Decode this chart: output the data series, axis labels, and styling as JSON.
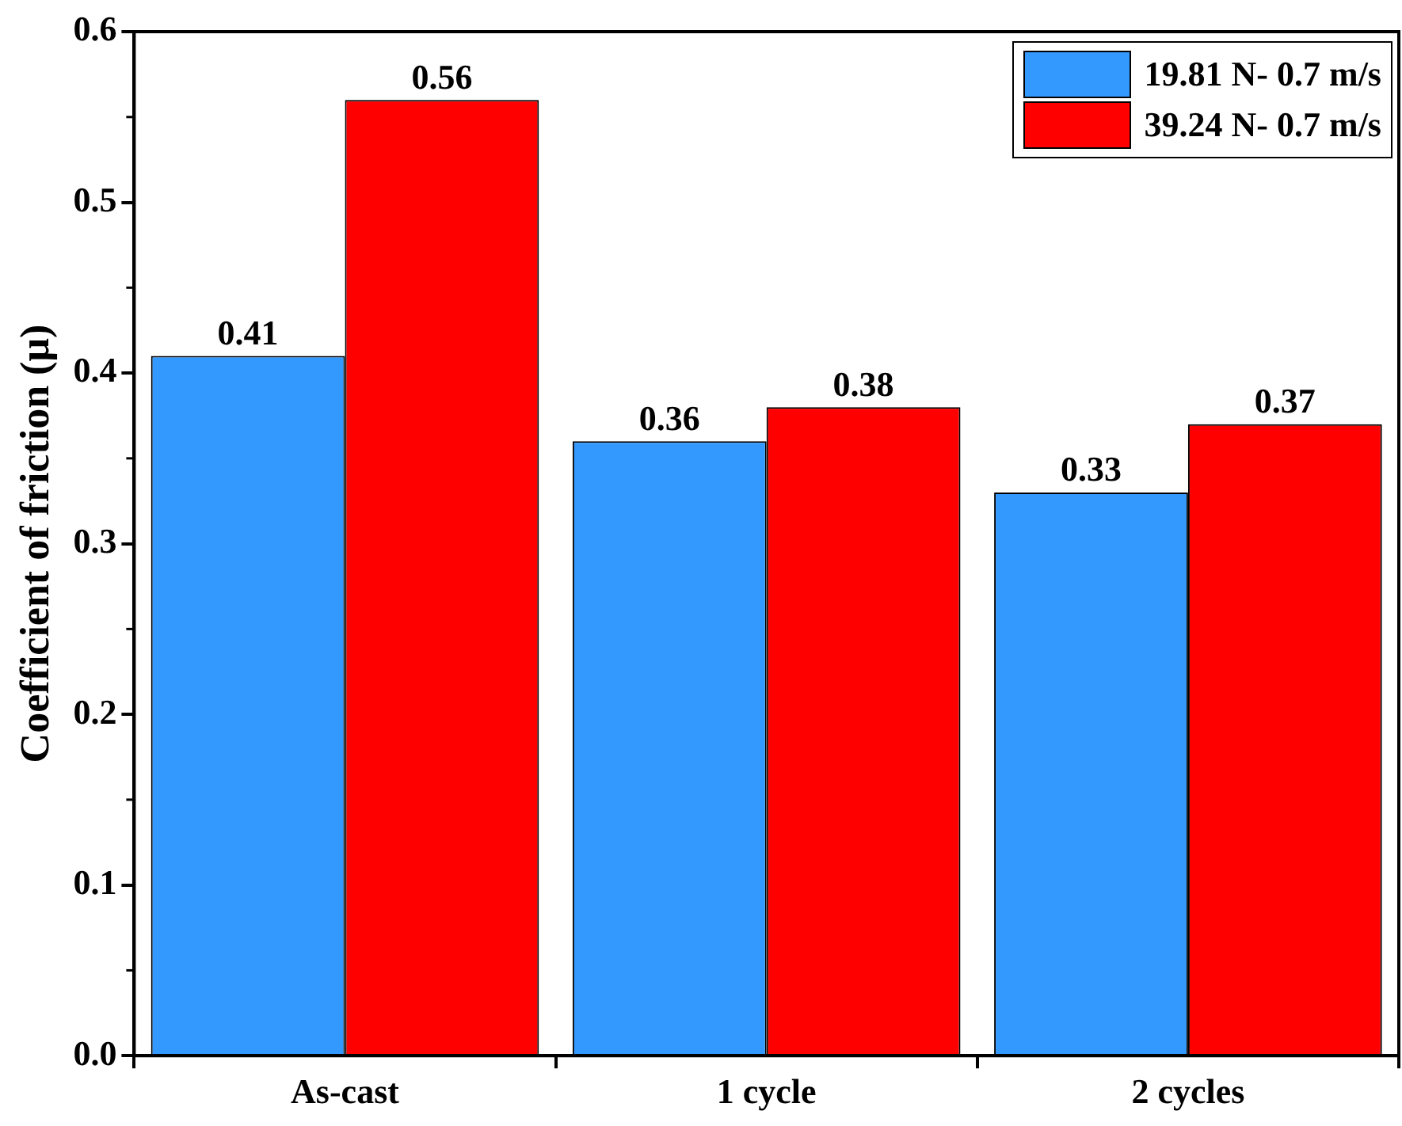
{
  "chart_data": {
    "type": "bar",
    "ylabel": "Coefficient of friction (μ)",
    "categories": [
      "As-cast",
      "1 cycle",
      "2 cycles"
    ],
    "series": [
      {
        "name": "19.81 N-  0.7 m/s",
        "color": "#3399ff",
        "values": [
          0.41,
          0.36,
          0.33
        ]
      },
      {
        "name": "39.24 N-  0.7 m/s",
        "color": "#ff0000",
        "values": [
          0.56,
          0.38,
          0.37
        ]
      }
    ],
    "ylim": [
      0,
      0.6
    ],
    "yticks": [
      {
        "value": 0,
        "label": "0.0"
      },
      0.1,
      0.2,
      0.3,
      0.4,
      0.5,
      0.6
    ],
    "grid": false,
    "legend": "top right",
    "data_labels": true
  }
}
